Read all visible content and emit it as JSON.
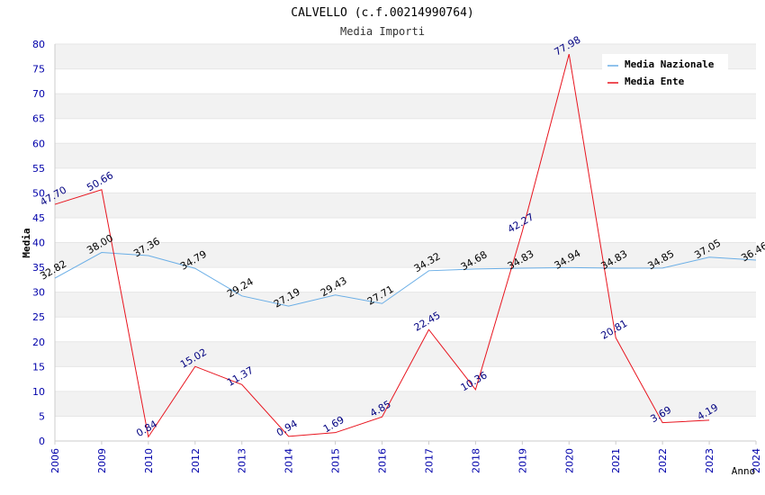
{
  "chart_data": {
    "type": "line",
    "title": "CALVELLO (c.f.00214990764)",
    "subtitle": "Media Importi",
    "xlabel": "Anno",
    "ylabel": "Media",
    "categories": [
      "2006",
      "2009",
      "2010",
      "2012",
      "2013",
      "2014",
      "2015",
      "2016",
      "2017",
      "2018",
      "2019",
      "2020",
      "2021",
      "2022",
      "2023",
      "2024"
    ],
    "ylim": [
      0,
      80
    ],
    "yticks": [
      0,
      5,
      10,
      15,
      20,
      25,
      30,
      35,
      40,
      45,
      50,
      55,
      60,
      65,
      70,
      75,
      80
    ],
    "grid": true,
    "legend_position": "top-right",
    "series": [
      {
        "name": "Media Nazionale",
        "color": "#6aaee6",
        "label_color": "#000000",
        "values": [
          32.82,
          38.0,
          37.36,
          34.79,
          29.24,
          27.19,
          29.43,
          27.71,
          34.32,
          34.68,
          34.83,
          34.94,
          34.83,
          34.85,
          37.05,
          36.46
        ],
        "labels": [
          "32.82",
          "38.00",
          "37.36",
          "34.79",
          "29.24",
          "27.19",
          "29.43",
          "27.71",
          "34.32",
          "34.68",
          "34.83",
          "34.94",
          "34.83",
          "34.85",
          "37.05",
          "36.46"
        ]
      },
      {
        "name": "Media Ente",
        "color": "#e8141e",
        "label_color": "#000080",
        "values": [
          47.7,
          50.66,
          0.84,
          15.02,
          11.37,
          0.94,
          1.69,
          4.85,
          22.45,
          10.36,
          42.27,
          77.98,
          20.81,
          3.69,
          4.19,
          null
        ],
        "labels": [
          "47.70",
          "50.66",
          "0.84",
          "15.02",
          "11.37",
          "0.94",
          "1.69",
          "4.85",
          "22.45",
          "10.36",
          "42.27",
          "77.98",
          "20.81",
          "3.69",
          "4.19",
          ""
        ]
      }
    ],
    "colors": {
      "axis_tick_label": "#0000aa",
      "band": "#f2f2f2",
      "axis_line": "#cccccc",
      "title": "#000000",
      "subtitle": "#333333"
    }
  }
}
